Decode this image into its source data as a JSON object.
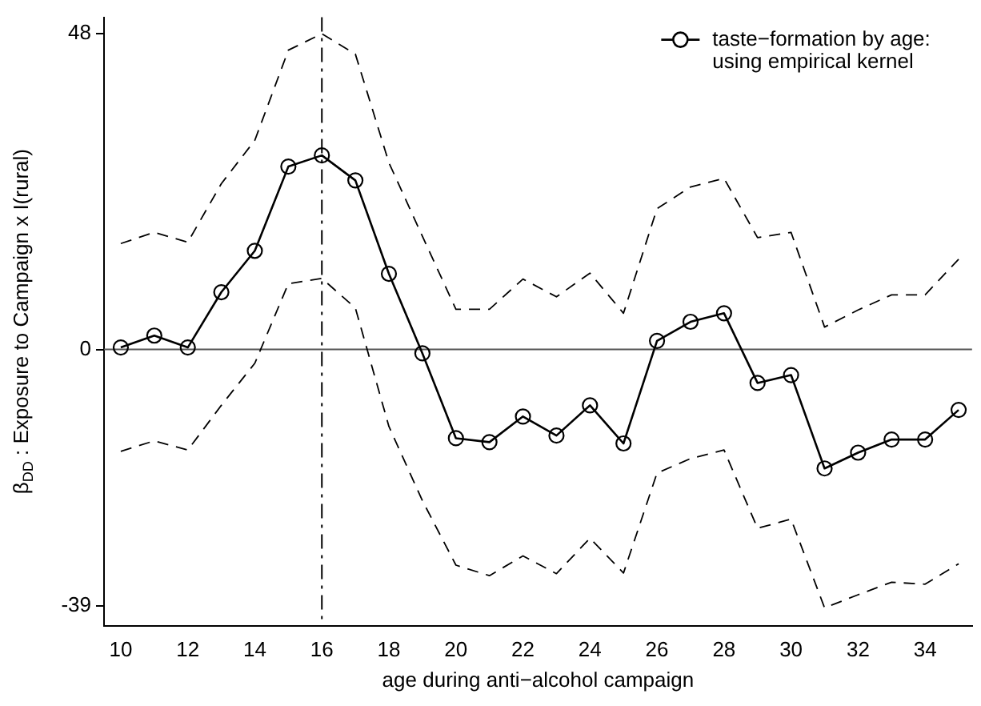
{
  "chart_data": {
    "type": "line",
    "xlabel": "age during anti−alcohol campaign",
    "ylabel": "β$_{DD}$ : Exposure to Campaign x I(rural)",
    "x": [
      10,
      11,
      12,
      13,
      14,
      15,
      16,
      17,
      18,
      19,
      20,
      21,
      22,
      23,
      24,
      25,
      26,
      27,
      28,
      29,
      30,
      31,
      32,
      33,
      34,
      35
    ],
    "series": [
      {
        "name": "taste−formation by age:\nusing empirical kernel",
        "color": "#000000",
        "marker": "circle",
        "line_style": "solid",
        "values": [
          0.3,
          2.1,
          0.3,
          8.7,
          15.0,
          27.8,
          29.5,
          25.7,
          11.5,
          -0.6,
          -13.5,
          -14.1,
          -10.2,
          -13.1,
          -8.5,
          -14.3,
          1.3,
          4.2,
          5.5,
          -5.1,
          -3.9,
          -18.1,
          -15.7,
          -13.7,
          -13.7,
          -9.2
        ]
      },
      {
        "color": "#000000",
        "marker": "none",
        "line_style": "dashed",
        "values": [
          16.1,
          17.8,
          16.3,
          25.2,
          31.8,
          45.5,
          48,
          44.9,
          28.4,
          17.2,
          6.1,
          6.1,
          10.7,
          8.0,
          11.6,
          5.5,
          21.4,
          24.7,
          26.0,
          17.0,
          17.8,
          3.4,
          6.0,
          8.3,
          8.3,
          13.7
        ]
      },
      {
        "color": "#000000",
        "marker": "none",
        "line_style": "dashed",
        "values": [
          -15.5,
          -13.9,
          -15.3,
          -8.5,
          -2.1,
          10.0,
          10.8,
          6.3,
          -11.7,
          -23,
          -32.8,
          -34.4,
          -31.4,
          -34.1,
          -28.7,
          -34.0,
          -18.8,
          -16.6,
          -15.3,
          -27.2,
          -25.8,
          -39.3,
          -37.3,
          -35.4,
          -35.7,
          -32.6
        ]
      }
    ],
    "xlim": [
      9.5,
      35.4
    ],
    "xticks": [
      10,
      12,
      14,
      16,
      18,
      20,
      22,
      24,
      26,
      28,
      30,
      32,
      34
    ],
    "ylim": [
      -42,
      50.5
    ],
    "yticks": [
      48,
      0,
      -39
    ],
    "ref_lines": [
      {
        "axis": "y",
        "value": 0,
        "color": "#555555",
        "line_style": "solid"
      },
      {
        "axis": "x",
        "value": 16,
        "color": "#000000",
        "line_style": "dashdot"
      }
    ],
    "grid": false,
    "legend": "top right"
  }
}
